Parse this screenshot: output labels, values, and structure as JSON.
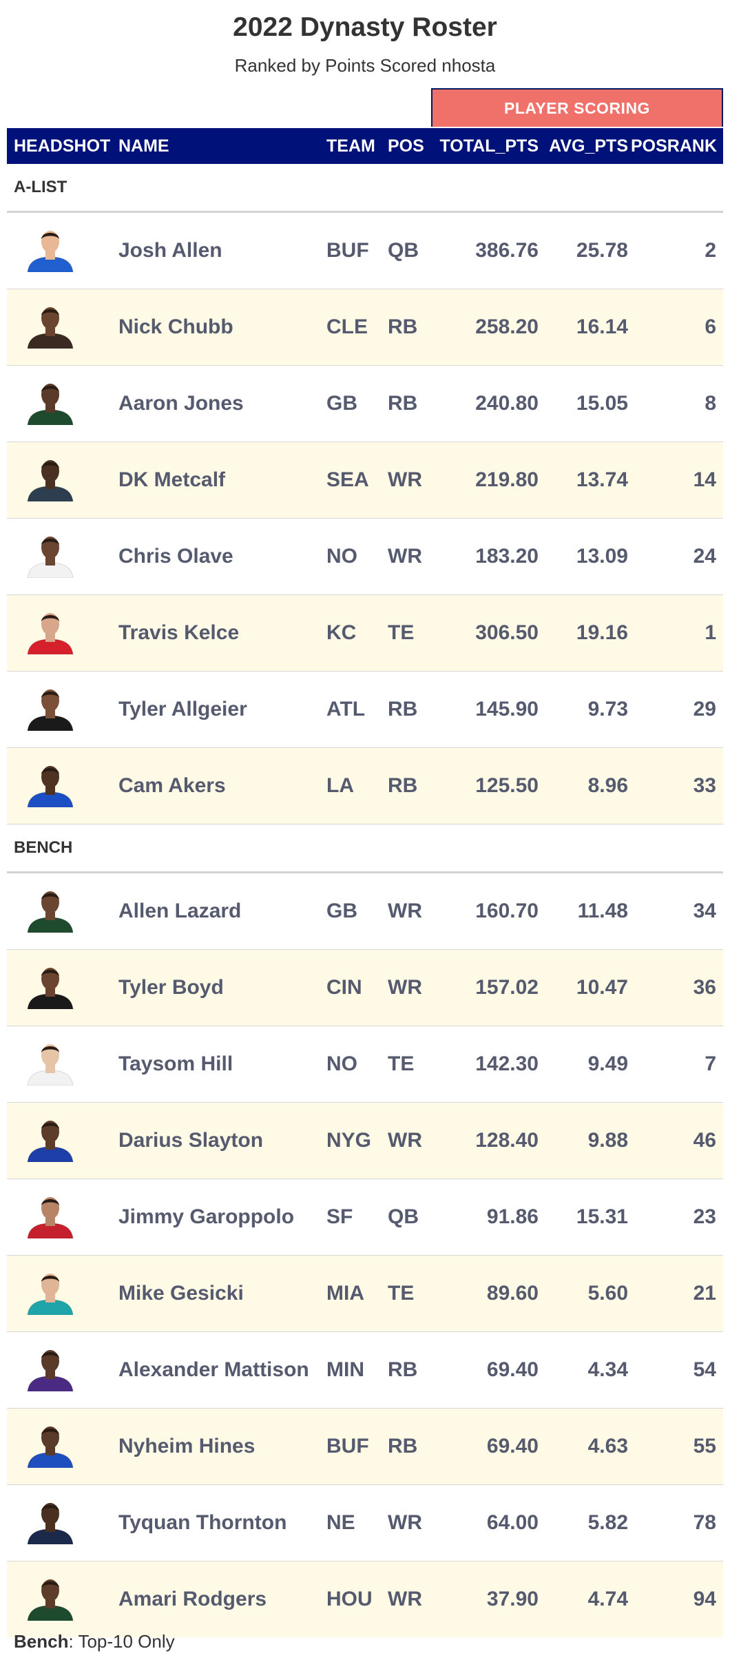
{
  "title": "2022 Dynasty Roster",
  "subtitle": "Ranked by Points Scored nhosta",
  "spanner_label": "PLAYER SCORING",
  "columns": {
    "headshot": "HEADSHOT",
    "name": "NAME",
    "team": "TEAM",
    "pos": "POS",
    "total": "TOTAL_PTS",
    "avg": "AVG_PTS",
    "rank": "POSRANK"
  },
  "groups": [
    {
      "label": "A-LIST",
      "rows": [
        {
          "name": "Josh Allen",
          "team": "BUF",
          "pos": "QB",
          "total": "386.76",
          "avg": "25.78",
          "rank": "2",
          "jersey": "#1f5fcf",
          "skin": "#e8b895"
        },
        {
          "name": "Nick Chubb",
          "team": "CLE",
          "pos": "RB",
          "total": "258.20",
          "avg": "16.14",
          "rank": "6",
          "jersey": "#3a2a22",
          "skin": "#6b4430"
        },
        {
          "name": "Aaron Jones",
          "team": "GB",
          "pos": "RB",
          "total": "240.80",
          "avg": "15.05",
          "rank": "8",
          "jersey": "#1e4a2e",
          "skin": "#5a3a28"
        },
        {
          "name": "DK Metcalf",
          "team": "SEA",
          "pos": "WR",
          "total": "219.80",
          "avg": "13.74",
          "rank": "14",
          "jersey": "#2c3e50",
          "skin": "#4a3020"
        },
        {
          "name": "Chris Olave",
          "team": "NO",
          "pos": "WR",
          "total": "183.20",
          "avg": "13.09",
          "rank": "24",
          "jersey": "#f2f2f2",
          "skin": "#6a4532"
        },
        {
          "name": "Travis Kelce",
          "team": "KC",
          "pos": "TE",
          "total": "306.50",
          "avg": "19.16",
          "rank": "1",
          "jersey": "#d6202c",
          "skin": "#d8a68a"
        },
        {
          "name": "Tyler Allgeier",
          "team": "ATL",
          "pos": "RB",
          "total": "145.90",
          "avg": "9.73",
          "rank": "29",
          "jersey": "#1a1a1a",
          "skin": "#7a5038"
        },
        {
          "name": "Cam Akers",
          "team": "LA",
          "pos": "RB",
          "total": "125.50",
          "avg": "8.96",
          "rank": "33",
          "jersey": "#1d4fc4",
          "skin": "#4e3322"
        }
      ]
    },
    {
      "label": "BENCH",
      "rows": [
        {
          "name": "Allen Lazard",
          "team": "GB",
          "pos": "WR",
          "total": "160.70",
          "avg": "11.48",
          "rank": "34",
          "jersey": "#1e4a2e",
          "skin": "#6a4532"
        },
        {
          "name": "Tyler Boyd",
          "team": "CIN",
          "pos": "WR",
          "total": "157.02",
          "avg": "10.47",
          "rank": "36",
          "jersey": "#1a1a1a",
          "skin": "#6b4430"
        },
        {
          "name": "Taysom Hill",
          "team": "NO",
          "pos": "TE",
          "total": "142.30",
          "avg": "9.49",
          "rank": "7",
          "jersey": "#f2f2f2",
          "skin": "#e5c4a8"
        },
        {
          "name": "Darius Slayton",
          "team": "NYG",
          "pos": "WR",
          "total": "128.40",
          "avg": "9.88",
          "rank": "46",
          "jersey": "#1f3fa8",
          "skin": "#5e3c2a"
        },
        {
          "name": "Jimmy Garoppolo",
          "team": "SF",
          "pos": "QB",
          "total": "91.86",
          "avg": "15.31",
          "rank": "23",
          "jersey": "#c4202e",
          "skin": "#b88466"
        },
        {
          "name": "Mike Gesicki",
          "team": "MIA",
          "pos": "TE",
          "total": "89.60",
          "avg": "5.60",
          "rank": "21",
          "jersey": "#1fa5a9",
          "skin": "#e0b496"
        },
        {
          "name": "Alexander Mattison",
          "team": "MIN",
          "pos": "RB",
          "total": "69.40",
          "avg": "4.34",
          "rank": "54",
          "jersey": "#4b2a83",
          "skin": "#5a3a28"
        },
        {
          "name": "Nyheim Hines",
          "team": "BUF",
          "pos": "RB",
          "total": "69.40",
          "avg": "4.63",
          "rank": "55",
          "jersey": "#1f4fbf",
          "skin": "#5a3a28"
        },
        {
          "name": "Tyquan Thornton",
          "team": "NE",
          "pos": "WR",
          "total": "64.00",
          "avg": "5.82",
          "rank": "78",
          "jersey": "#1b2a4a",
          "skin": "#4a3020"
        },
        {
          "name": "Amari Rodgers",
          "team": "HOU",
          "pos": "WR",
          "total": "37.90",
          "avg": "4.74",
          "rank": "94",
          "jersey": "#1e4a2e",
          "skin": "#5e3c2a"
        }
      ]
    }
  ],
  "footnote": {
    "bold": "Bench",
    "text": ": Top-10 Only"
  },
  "colors": {
    "header_bg": "#00127a",
    "spanner_bg": "#f0706a",
    "alt_row": "#fefae6"
  }
}
